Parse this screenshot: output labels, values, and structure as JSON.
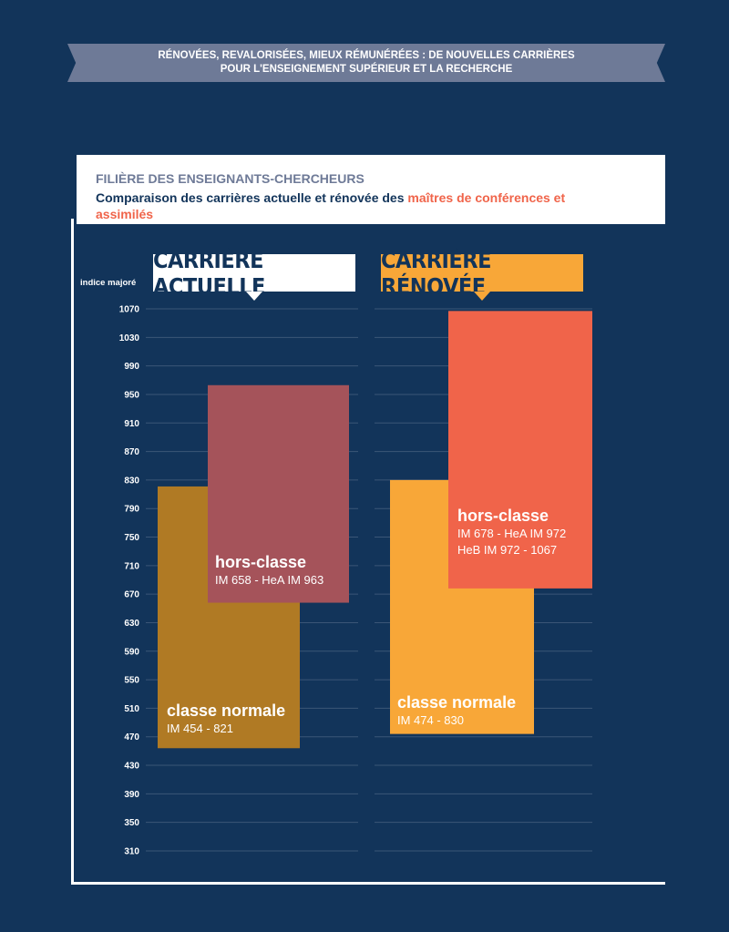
{
  "banner": {
    "line1": "RÉNOVÉES, REVALORISÉES, MIEUX RÉMUNÉRÉES : DE NOUVELLES CARRIÈRES",
    "line2": "POUR L'ENSEIGNEMENT SUPÉRIEUR ET LA RECHERCHE"
  },
  "panel": {
    "title": "FILIÈRE DES ENSEIGNANTS-CHERCHEURS",
    "subtitle_prefix": "Comparaison des carrières actuelle et rénovée des ",
    "subtitle_highlight": "maîtres de conférences et assimilés"
  },
  "colors": {
    "background": "#12345a",
    "banner": "#6e7a97",
    "actuelle_normale": "#b07a24",
    "actuelle_hors": "#a5535a",
    "renovee_normale": "#f8a738",
    "renovee_hors": "#f0644a",
    "highlight": "#f0644a"
  },
  "headers": {
    "actuelle": "CARRIÈRE ACTUELLE",
    "renovee": "CARRIÈRE RÉNOVÉE"
  },
  "chart_data": {
    "type": "bar",
    "ylabel": "indice majoré",
    "ylim": [
      310,
      1070
    ],
    "yticks": [
      1070,
      1030,
      990,
      950,
      910,
      870,
      830,
      790,
      750,
      710,
      670,
      630,
      590,
      550,
      510,
      470,
      430,
      390,
      350,
      310
    ],
    "grid": true,
    "groups": [
      {
        "name": "CARRIÈRE ACTUELLE",
        "segments": [
          {
            "name": "classe normale",
            "range_label": "IM 454 - 821",
            "low": 454,
            "high": 821,
            "color": "#b07a24"
          },
          {
            "name": "hors-classe",
            "range_label": "IM 658 - HeA IM 963",
            "low": 658,
            "high": 963,
            "color": "#a5535a"
          }
        ]
      },
      {
        "name": "CARRIÈRE RÉNOVÉE",
        "segments": [
          {
            "name": "classe normale",
            "range_label": "IM 474 - 830",
            "low": 474,
            "high": 830,
            "color": "#f8a738"
          },
          {
            "name": "hors-classe",
            "range_label": "IM 678 - HeA IM 972",
            "range_label_2": "HeB IM 972 - 1067",
            "low": 678,
            "high": 1067,
            "color": "#f0644a"
          }
        ]
      }
    ]
  }
}
